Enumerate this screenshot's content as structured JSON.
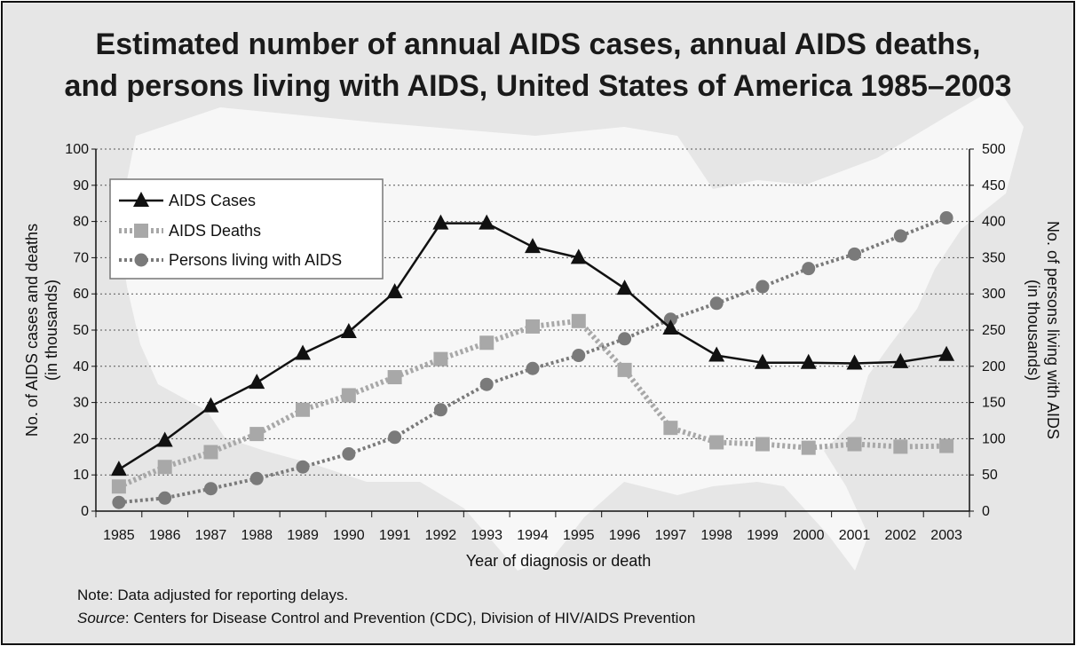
{
  "colors": {
    "background": "#e6e6e6",
    "map_fill": "#f7f7f7",
    "cases_line": "#111111",
    "deaths_line": "#a8a8a8",
    "living_line": "#7a7a7a"
  },
  "chart_data": {
    "type": "line",
    "title": "Estimated number of annual AIDS cases, annual AIDS deaths, and persons living with AIDS, United States of America 1985–2003",
    "title_line1": "Estimated number of annual AIDS cases, annual AIDS deaths,",
    "title_line2": "and persons living with AIDS, United States of America 1985–2003",
    "xlabel": "Year of diagnosis or death",
    "ylabel_left_line1": "No. of AIDS cases and deaths",
    "ylabel_left_line2": "(in thousands)",
    "ylabel_right_line1": "No. of persons living with AIDS",
    "ylabel_right_line2": "(in thousands)",
    "ylim_left": [
      0,
      100
    ],
    "ylim_right": [
      0,
      500
    ],
    "yticks_left": [
      "0",
      "10",
      "20",
      "30",
      "40",
      "50",
      "60",
      "70",
      "80",
      "90",
      "100"
    ],
    "yticks_right": [
      "0",
      "50",
      "100",
      "150",
      "200",
      "250",
      "300",
      "350",
      "400",
      "450",
      "500"
    ],
    "categories": [
      "1985",
      "1986",
      "1987",
      "1988",
      "1989",
      "1990",
      "1991",
      "1992",
      "1993",
      "1994",
      "1995",
      "1996",
      "1997",
      "1998",
      "1999",
      "2000",
      "2001",
      "2002",
      "2003"
    ],
    "grid": true,
    "legend_position": "top-left",
    "series": [
      {
        "name": "AIDS Cases",
        "axis": "left",
        "marker": "triangle",
        "style": "solid",
        "values": [
          11.5,
          19.5,
          29,
          35.5,
          43.5,
          49.5,
          60.5,
          79.5,
          79.5,
          73,
          70,
          61.5,
          50.5,
          43,
          41,
          41,
          40.8,
          41.2,
          43.2
        ]
      },
      {
        "name": "AIDS Deaths",
        "axis": "left",
        "marker": "square",
        "style": "dotted",
        "values": [
          6.8,
          12.2,
          16.3,
          21.3,
          28,
          32,
          37,
          42,
          46.5,
          51,
          52.5,
          39,
          23,
          19,
          18.5,
          17.5,
          18.5,
          17.8,
          18
        ]
      },
      {
        "name": "Persons living with AIDS",
        "axis": "right",
        "marker": "circle",
        "style": "dotted",
        "values": [
          12,
          18,
          31,
          45,
          61,
          79,
          102,
          140,
          175,
          197,
          215,
          238,
          265,
          287,
          310,
          335,
          355,
          380,
          405
        ]
      }
    ]
  },
  "footnote": {
    "note": "Note: Data adjusted for reporting delays.",
    "source_label": "Source",
    "source_text": ": Centers for Disease Control and Prevention (CDC), Division of HIV/AIDS Prevention"
  }
}
